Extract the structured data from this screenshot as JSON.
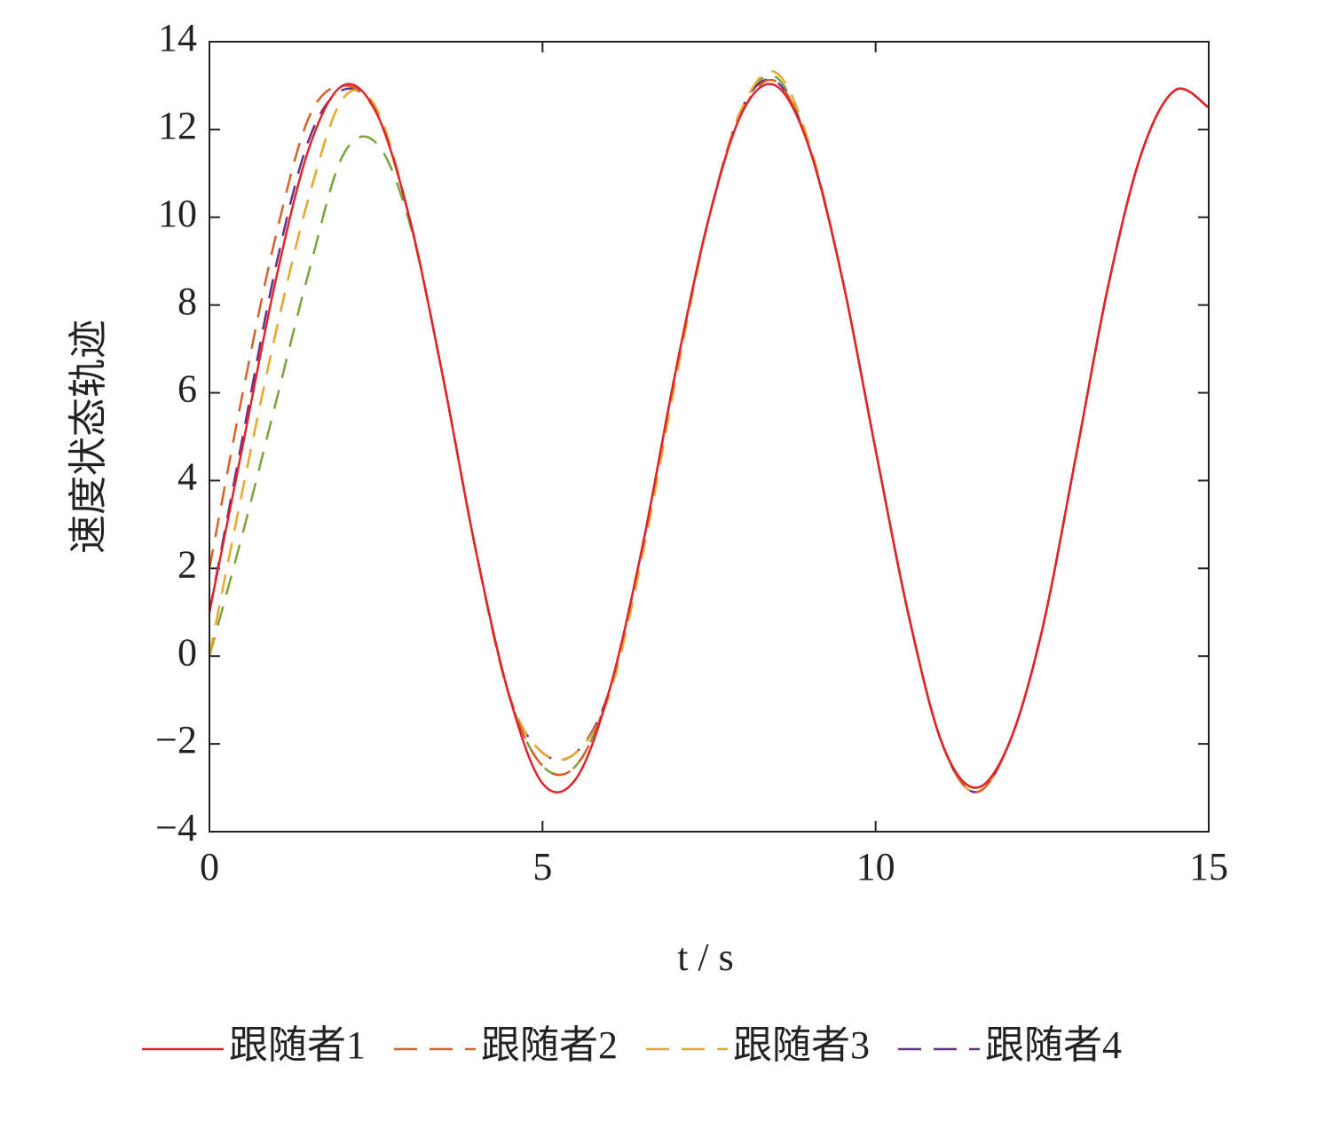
{
  "chart_data": {
    "type": "line",
    "x_label": "t / s",
    "y_label": "速度状态轨迹",
    "x": [
      0,
      0.5,
      1,
      1.5,
      2,
      2.5,
      3,
      3.5,
      4,
      4.5,
      5,
      5.5,
      6,
      6.5,
      7,
      7.5,
      8,
      8.5,
      9,
      9.5,
      10,
      10.5,
      11,
      11.5,
      12,
      12.5,
      13,
      13.5,
      14,
      14.5,
      15
    ],
    "series": [
      {
        "name": "跟随者1",
        "color": "#e0242b",
        "style": "solid",
        "values": [
          1.0,
          4.8,
          8.6,
          11.6,
          13.0,
          12.4,
          10.0,
          6.4,
          2.4,
          -0.9,
          -2.9,
          -2.8,
          -0.8,
          2.5,
          6.5,
          10.0,
          12.4,
          13.0,
          11.6,
          8.6,
          4.7,
          0.9,
          -2.0,
          -3.0,
          -2.0,
          0.6,
          4.5,
          8.5,
          11.5,
          12.9,
          12.5
        ]
      },
      {
        "name": "跟随者2",
        "color": "#d4622a",
        "style": "dashed",
        "values": [
          2.0,
          6.0,
          9.6,
          12.3,
          13.0,
          12.4,
          10.0,
          6.4,
          2.4,
          -0.9,
          -2.5,
          -2.5,
          -0.8,
          2.5,
          6.5,
          10.0,
          12.4,
          13.1,
          11.6,
          8.6,
          4.7,
          0.9,
          -2.0,
          -3.1,
          -2.0,
          0.6,
          4.5,
          8.5,
          11.5,
          12.9,
          12.5
        ]
      },
      {
        "name": "跟随者3",
        "color": "#e8a62a",
        "style": "dashed",
        "values": [
          0.0,
          3.8,
          7.4,
          10.5,
          12.7,
          12.5,
          10.0,
          6.4,
          2.4,
          -0.9,
          -2.2,
          -2.2,
          -0.9,
          2.3,
          6.3,
          10.0,
          12.5,
          13.3,
          11.7,
          8.6,
          4.7,
          0.9,
          -2.0,
          -3.1,
          -2.0,
          0.6,
          4.5,
          8.5,
          11.5,
          12.9,
          12.5
        ]
      },
      {
        "name": "跟随者4",
        "color": "#6b2f87",
        "style": "dashed",
        "values": [
          1.0,
          5.0,
          8.9,
          11.8,
          12.9,
          12.4,
          10.0,
          6.4,
          2.4,
          -0.9,
          -2.2,
          -2.2,
          -0.8,
          2.5,
          6.5,
          10.0,
          12.5,
          13.1,
          11.6,
          8.6,
          4.7,
          0.9,
          -2.0,
          -3.1,
          -2.0,
          0.6,
          4.5,
          8.5,
          11.5,
          12.9,
          12.5
        ]
      },
      {
        "color": "#7aa33a",
        "style": "dashed",
        "values": [
          0.0,
          2.8,
          5.8,
          8.8,
          11.4,
          11.7,
          9.9,
          6.4,
          2.4,
          -0.9,
          -2.5,
          -2.5,
          -0.8,
          2.5,
          6.5,
          10.0,
          12.5,
          13.2,
          11.6,
          8.6,
          4.7,
          0.9,
          -2.0,
          -3.0,
          -2.0,
          0.6,
          4.5,
          8.5,
          11.5,
          12.9,
          12.5
        ]
      }
    ],
    "xlim": [
      0,
      15
    ],
    "xticks": [
      0,
      5,
      10,
      15
    ],
    "ylim": [
      -4,
      14
    ],
    "yticks": [
      {
        "value": -4,
        "label": "−4"
      },
      {
        "value": -2,
        "label": "−2"
      },
      0,
      2,
      4,
      6,
      8,
      10,
      12,
      14
    ],
    "grid": false,
    "legend": "bottom"
  }
}
